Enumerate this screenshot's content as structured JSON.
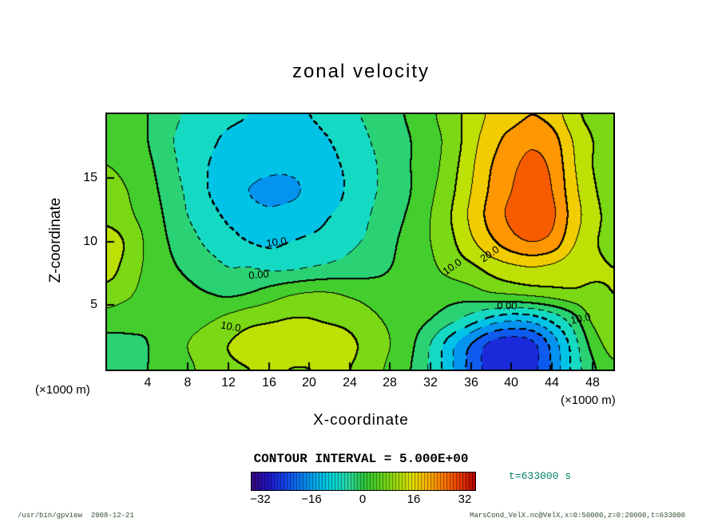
{
  "labels": {
    "unit_left": "(×1000 m)",
    "unit_right": "(×1000 m)",
    "contour_interval": "CONTOUR INTERVAL = 5.000E+00",
    "time": "t=633000 s"
  },
  "footer": {
    "left": "/usr/bin/gpview  2008-12-21",
    "right": "MarsCond_VelX.nc@VelX,x=0:50000,z=0:20000,t=633000"
  },
  "chart_data": {
    "type": "heatmap",
    "title": "zonal velocity",
    "xlabel": "X-coordinate",
    "ylabel": "Z-coordinate",
    "contour_interval": 5,
    "contour_interval_label": "5.000E+00",
    "vmin": -35,
    "vmax": 35,
    "xlim": [
      0,
      50
    ],
    "zlim": [
      0,
      20
    ],
    "x": [
      0,
      2,
      4,
      6,
      8,
      10,
      12,
      14,
      16,
      18,
      20,
      22,
      24,
      26,
      28,
      30,
      32,
      34,
      36,
      38,
      40,
      42,
      44,
      46,
      48,
      50
    ],
    "z": [
      20,
      18,
      16,
      14,
      12,
      10,
      8,
      6,
      4,
      2,
      0
    ],
    "values": [
      [
        3,
        2,
        0,
        -3,
        -6,
        -8,
        -9,
        -10,
        -11,
        -11,
        -10,
        -8,
        -6,
        -4,
        -2,
        1,
        4,
        8,
        12,
        16,
        18,
        20,
        18,
        12,
        8,
        5
      ],
      [
        4,
        3,
        0,
        -4,
        -7,
        -9,
        -11,
        -12,
        -13,
        -13,
        -12,
        -10,
        -8,
        -5,
        -3,
        0,
        3,
        7,
        13,
        18,
        22,
        24,
        22,
        15,
        10,
        7
      ],
      [
        5,
        4,
        1,
        -3,
        -7,
        -10,
        -12,
        -13,
        -14,
        -14,
        -13,
        -11,
        -9,
        -6,
        -3,
        0,
        3,
        8,
        14,
        20,
        24,
        26,
        24,
        16,
        10,
        6
      ],
      [
        6,
        5,
        2,
        -2,
        -6,
        -10,
        -13,
        -15,
        -16,
        -16,
        -14,
        -12,
        -9,
        -6,
        -3,
        0,
        4,
        9,
        15,
        21,
        25,
        27,
        25,
        17,
        11,
        7
      ],
      [
        8,
        6,
        3,
        -1,
        -5,
        -8,
        -11,
        -13,
        -14,
        -13,
        -12,
        -10,
        -8,
        -5,
        -2,
        1,
        5,
        10,
        16,
        22,
        26,
        28,
        26,
        18,
        12,
        8
      ],
      [
        13,
        9,
        4,
        0,
        -3,
        -6,
        -8,
        -10,
        -11,
        -10,
        -9,
        -8,
        -6,
        -4,
        -1,
        2,
        5,
        9,
        14,
        19,
        23,
        25,
        23,
        16,
        11,
        8
      ],
      [
        12,
        8,
        4,
        1,
        -1,
        -3,
        -5,
        -5,
        -6,
        -6,
        -5,
        -4,
        -3,
        -2,
        0,
        2,
        4,
        7,
        9,
        12,
        14,
        15,
        14,
        12,
        11,
        10
      ],
      [
        8,
        6,
        3,
        2,
        1,
        0,
        -1,
        0,
        2,
        4,
        5,
        5,
        4,
        3,
        2,
        2,
        2,
        2,
        3,
        5,
        6,
        7,
        8,
        9,
        9,
        10
      ],
      [
        3,
        2,
        1,
        1,
        2,
        4,
        6,
        8,
        9,
        10,
        10,
        9,
        8,
        6,
        4,
        2,
        0,
        -3,
        -7,
        -11,
        -13,
        -12,
        -8,
        -2,
        6,
        9
      ],
      [
        -2,
        -1,
        0,
        2,
        5,
        8,
        10,
        12,
        13,
        12,
        12,
        13,
        11,
        8,
        5,
        1,
        -5,
        -13,
        -20,
        -26,
        -28,
        -26,
        -18,
        -8,
        2,
        7
      ],
      [
        -4,
        -2,
        0,
        2,
        4,
        7,
        9,
        10,
        11,
        10,
        10,
        11,
        10,
        7,
        4,
        0,
        -6,
        -14,
        -22,
        -27,
        -30,
        -27,
        -19,
        -9,
        -1,
        4
      ]
    ],
    "xticks": [
      4,
      8,
      12,
      16,
      20,
      24,
      28,
      32,
      36,
      40,
      44,
      48
    ],
    "zticks": [
      5,
      10,
      15
    ],
    "colorbar_ticks": [
      {
        "label": "−32",
        "value": -32
      },
      {
        "label": "−16",
        "value": -16
      },
      {
        "label": "0",
        "value": 0
      },
      {
        "label": "16",
        "value": 16
      },
      {
        "label": "32",
        "value": 32
      }
    ],
    "colormap_stops": [
      [
        -35,
        "#38077e"
      ],
      [
        -30,
        "#2212c4"
      ],
      [
        -25,
        "#1240ee"
      ],
      [
        -20,
        "#0a78f0"
      ],
      [
        -15,
        "#00aef0"
      ],
      [
        -10,
        "#00d8dc"
      ],
      [
        -5,
        "#2adcaa"
      ],
      [
        0,
        "#2cc83c"
      ],
      [
        5,
        "#5ad41e"
      ],
      [
        10,
        "#9cdc0a"
      ],
      [
        15,
        "#e2e400"
      ],
      [
        20,
        "#ffb400"
      ],
      [
        25,
        "#ff7a00"
      ],
      [
        30,
        "#ee3c00"
      ],
      [
        35,
        "#b40000"
      ]
    ],
    "annotations": [
      {
        "text": "10.0",
        "fx": 0.335,
        "fy": 0.5,
        "rot": -8
      },
      {
        "text": "0.00",
        "fx": 0.3,
        "fy": 0.627,
        "rot": -5
      },
      {
        "text": "10.0",
        "fx": 0.682,
        "fy": 0.597,
        "rot": -35
      },
      {
        "text": "20.0",
        "fx": 0.755,
        "fy": 0.547,
        "rot": -35
      },
      {
        "text": "0.00",
        "fx": 0.79,
        "fy": 0.75,
        "rot": 0
      },
      {
        "text": "10.0",
        "fx": 0.935,
        "fy": 0.8,
        "rot": -12
      },
      {
        "text": "10.0",
        "fx": 0.245,
        "fy": 0.832,
        "rot": 10
      }
    ],
    "legend_position": "bottom",
    "grid": false
  }
}
